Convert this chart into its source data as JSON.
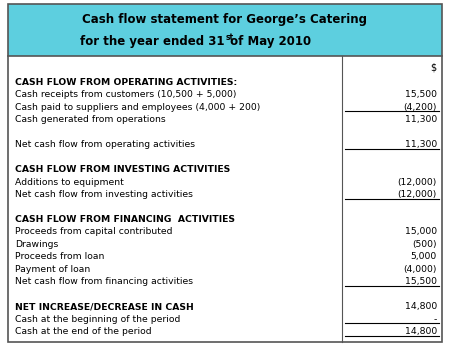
{
  "title_line1": "Cash flow statement for George’s Catering",
  "title_line2_pre": "for the year ended 31",
  "title_line2_sup": "st",
  "title_line2_post": " of May 2010",
  "header_bg": "#5dcfdf",
  "col_header": "$",
  "rows": [
    {
      "label": "CASH FLOW FROM OPERATING ACTIVITIES:",
      "value": "",
      "bold": true,
      "underline": false,
      "space_before": false
    },
    {
      "label": "Cash receipts from customers (10,500 + 5,000)",
      "value": "15,500",
      "bold": false,
      "underline": false,
      "space_before": false
    },
    {
      "label": "Cash paid to suppliers and employees (4,000 + 200)",
      "value": "(4,200)",
      "bold": false,
      "underline": true,
      "space_before": false
    },
    {
      "label": "Cash generated from operations",
      "value": "11,300",
      "bold": false,
      "underline": false,
      "space_before": false
    },
    {
      "label": "",
      "value": "",
      "bold": false,
      "underline": false,
      "space_before": false
    },
    {
      "label": "Net cash flow from operating activities",
      "value": "11,300",
      "bold": false,
      "underline": true,
      "space_before": false
    },
    {
      "label": "",
      "value": "",
      "bold": false,
      "underline": false,
      "space_before": false
    },
    {
      "label": "CASH FLOW FROM INVESTING ACTIVITIES",
      "value": "",
      "bold": true,
      "underline": false,
      "space_before": false
    },
    {
      "label": "Additions to equipment",
      "value": "(12,000)",
      "bold": false,
      "underline": false,
      "space_before": false
    },
    {
      "label": "Net cash flow from investing activities",
      "value": "(12,000)",
      "bold": false,
      "underline": true,
      "space_before": false
    },
    {
      "label": "",
      "value": "",
      "bold": false,
      "underline": false,
      "space_before": false
    },
    {
      "label": "CASH FLOW FROM FINANCING  ACTIVITIES",
      "value": "",
      "bold": true,
      "underline": false,
      "space_before": false
    },
    {
      "label": "Proceeds from capital contributed",
      "value": "15,000",
      "bold": false,
      "underline": false,
      "space_before": false
    },
    {
      "label": "Drawings",
      "value": "(500)",
      "bold": false,
      "underline": false,
      "space_before": false
    },
    {
      "label": "Proceeds from loan",
      "value": "5,000",
      "bold": false,
      "underline": false,
      "space_before": false
    },
    {
      "label": "Payment of loan",
      "value": "(4,000)",
      "bold": false,
      "underline": false,
      "space_before": false
    },
    {
      "label": "Net cash flow from financing activities",
      "value": "15,500",
      "bold": false,
      "underline": true,
      "space_before": false
    },
    {
      "label": "",
      "value": "",
      "bold": false,
      "underline": false,
      "space_before": false
    },
    {
      "label": "NET INCREASE/DECREASE IN CASH",
      "value": "14,800",
      "bold": true,
      "underline": false,
      "space_before": false
    },
    {
      "label": "Cash at the beginning of the period",
      "value": "-",
      "bold": false,
      "underline": true,
      "space_before": false
    },
    {
      "label": "Cash at the end of the period",
      "value": "14,800",
      "bold": false,
      "underline": true,
      "space_before": false
    }
  ],
  "fig_width": 4.5,
  "fig_height": 3.46,
  "dpi": 100
}
